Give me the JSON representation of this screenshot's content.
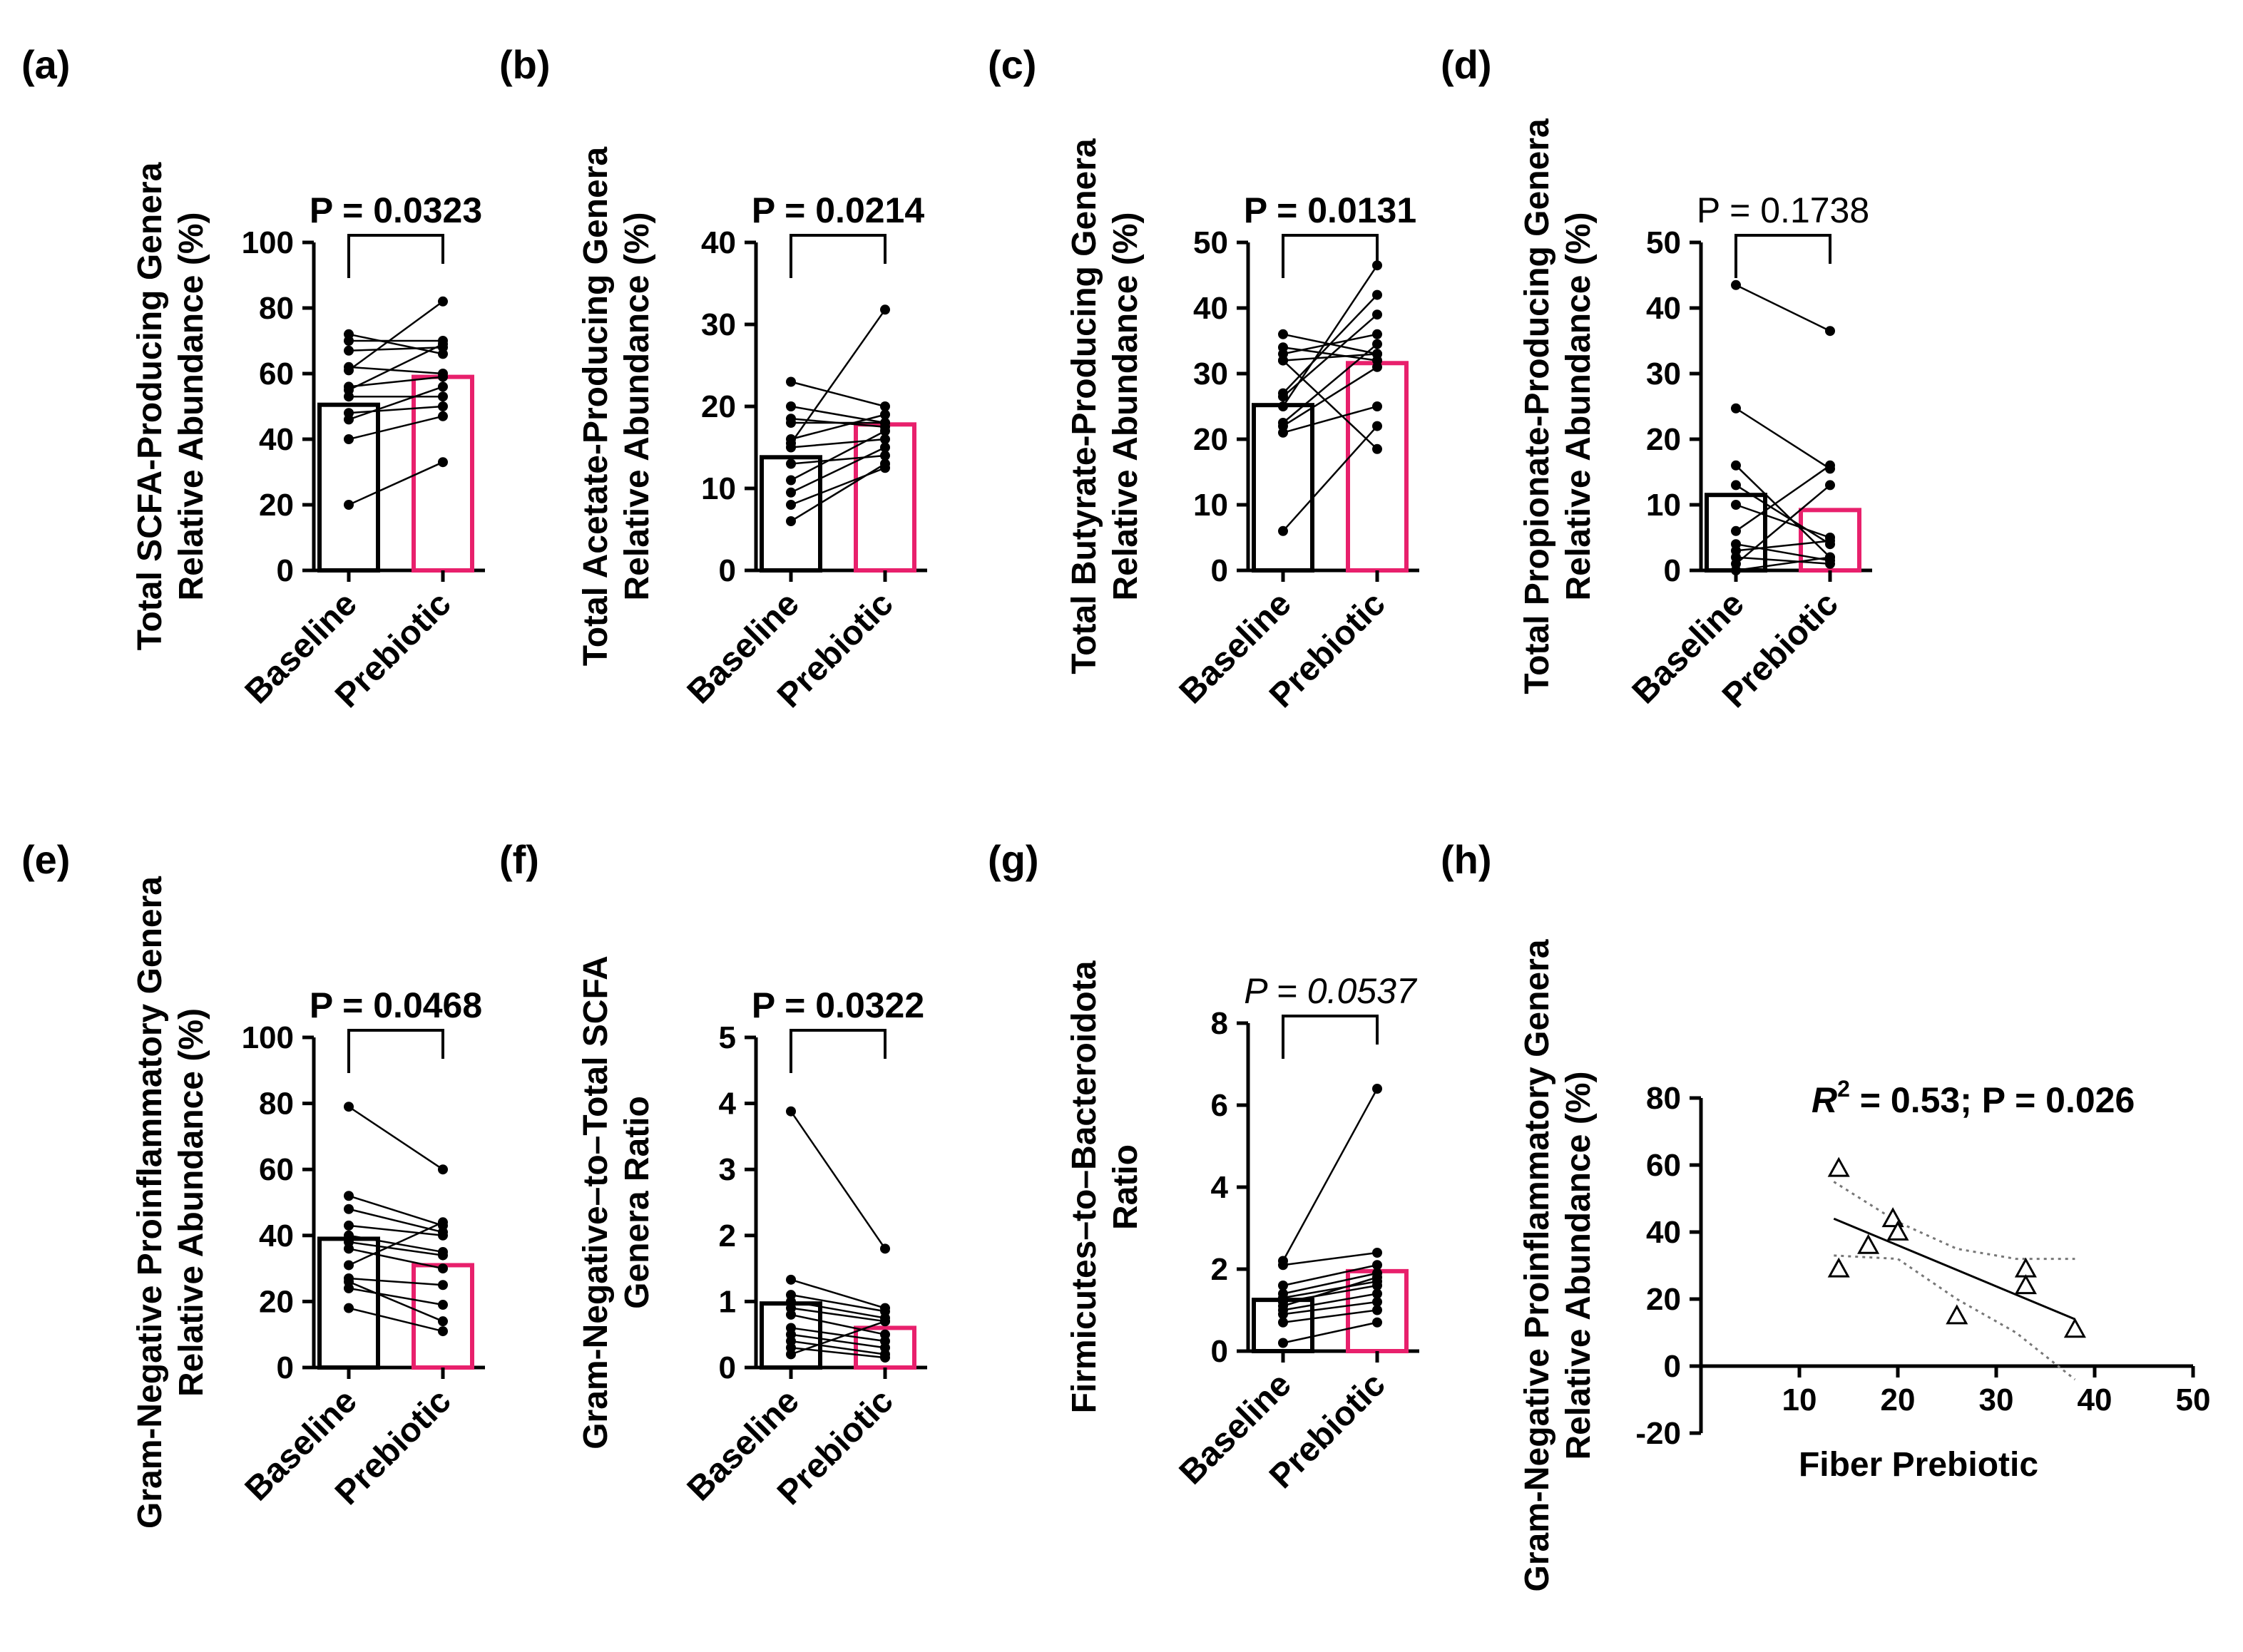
{
  "colors": {
    "baseline": "#000000",
    "prebiotic": "#e8206c",
    "line": "#000000"
  },
  "chart_data": [
    {
      "id": "a",
      "panel_label": "(a)",
      "type": "bar",
      "ylabel": [
        "Total SCFA-Producing Genera",
        "Relative Abundance (%)"
      ],
      "categories": [
        "Baseline",
        "Prebiotic"
      ],
      "values": [
        50.5,
        59
      ],
      "ylim": [
        0,
        100
      ],
      "yticks": [
        "0",
        "20",
        "40",
        "60",
        "80",
        "100"
      ],
      "pvalue": "P = 0.0323",
      "pstyle": "bold",
      "pairs": [
        [
          72,
          66
        ],
        [
          70,
          70
        ],
        [
          67,
          68
        ],
        [
          62,
          60
        ],
        [
          56,
          59
        ],
        [
          53,
          53
        ],
        [
          48,
          50
        ],
        [
          46,
          56
        ],
        [
          40,
          47
        ],
        [
          20,
          33
        ],
        [
          61,
          82
        ],
        [
          55,
          69
        ]
      ]
    },
    {
      "id": "b",
      "panel_label": "(b)",
      "type": "bar",
      "ylabel": [
        "Total Acetate-Producing Genera",
        "Relative Abundance (%)"
      ],
      "categories": [
        "Baseline",
        "Prebiotic"
      ],
      "values": [
        13.8,
        17.8
      ],
      "ylim": [
        0,
        40
      ],
      "yticks": [
        "0",
        "10",
        "20",
        "30",
        "40"
      ],
      "pvalue": "P = 0.0214",
      "pstyle": "bold",
      "pairs": [
        [
          23,
          20
        ],
        [
          20,
          18
        ],
        [
          18.5,
          17.5
        ],
        [
          18,
          18
        ],
        [
          16,
          19
        ],
        [
          15,
          16
        ],
        [
          13,
          14
        ],
        [
          11,
          17
        ],
        [
          9.5,
          15
        ],
        [
          8,
          12.5
        ],
        [
          6,
          13
        ],
        [
          15.5,
          31.8
        ]
      ]
    },
    {
      "id": "c",
      "panel_label": "(c)",
      "type": "bar",
      "ylabel": [
        "Total Butyrate-Producing Genera",
        "Relative Abundance (%)"
      ],
      "categories": [
        "Baseline",
        "Prebiotic"
      ],
      "values": [
        25.2,
        31.6
      ],
      "ylim": [
        0,
        50
      ],
      "yticks": [
        "0",
        "10",
        "20",
        "30",
        "40",
        "50"
      ],
      "pvalue": "P = 0.0131",
      "pstyle": "bold",
      "pairs": [
        [
          36,
          33
        ],
        [
          34,
          32
        ],
        [
          33,
          36
        ],
        [
          32,
          33
        ],
        [
          27,
          42
        ],
        [
          26.5,
          39
        ],
        [
          25,
          46.5
        ],
        [
          22.5,
          34.5
        ],
        [
          22,
          31
        ],
        [
          21,
          25
        ],
        [
          6,
          22
        ],
        [
          32,
          18.5
        ]
      ]
    },
    {
      "id": "d",
      "panel_label": "(d)",
      "type": "bar",
      "ylabel": [
        "Total Propionate-Producing Genera",
        "Relative Abundance (%)"
      ],
      "categories": [
        "Baseline",
        "Prebiotic"
      ],
      "values": [
        11.5,
        9.2
      ],
      "ylim": [
        0,
        50
      ],
      "yticks": [
        "0",
        "10",
        "20",
        "30",
        "40",
        "50"
      ],
      "pvalue": "P = 0.1738",
      "pstyle": "normal",
      "pairs": [
        [
          43.5,
          36.5
        ],
        [
          24.7,
          15.5
        ],
        [
          16,
          2
        ],
        [
          13,
          4
        ],
        [
          10,
          5
        ],
        [
          6,
          16
        ],
        [
          4,
          1.5
        ],
        [
          3,
          4.5
        ],
        [
          2,
          1
        ],
        [
          1,
          13
        ],
        [
          0,
          2
        ]
      ]
    },
    {
      "id": "e",
      "panel_label": "(e)",
      "type": "bar",
      "ylabel": [
        "Gram-Negative Proinflammatory Genera",
        "Relative Abundance (%)"
      ],
      "categories": [
        "Baseline",
        "Prebiotic"
      ],
      "values": [
        39,
        31
      ],
      "ylim": [
        0,
        100
      ],
      "yticks": [
        "0",
        "20",
        "40",
        "60",
        "80",
        "100"
      ],
      "pvalue": "P = 0.0468",
      "pstyle": "bold",
      "pairs": [
        [
          79,
          60
        ],
        [
          52,
          43
        ],
        [
          48,
          41
        ],
        [
          43,
          40
        ],
        [
          40,
          35
        ],
        [
          38,
          34
        ],
        [
          36,
          30
        ],
        [
          31,
          44
        ],
        [
          27,
          25
        ],
        [
          24,
          19
        ],
        [
          18,
          11
        ],
        [
          26,
          14
        ]
      ]
    },
    {
      "id": "f",
      "panel_label": "(f)",
      "type": "bar",
      "ylabel": [
        "Gram-Negative–to–Total SCFA",
        "Genera Ratio"
      ],
      "categories": [
        "Baseline",
        "Prebiotic"
      ],
      "values": [
        0.97,
        0.6
      ],
      "ylim": [
        0,
        5
      ],
      "yticks": [
        "0",
        "1",
        "2",
        "3",
        "4",
        "5"
      ],
      "pvalue": "P = 0.0322",
      "pstyle": "bold",
      "pairs": [
        [
          3.88,
          1.8
        ],
        [
          1.33,
          0.9
        ],
        [
          1.1,
          0.85
        ],
        [
          1.0,
          0.75
        ],
        [
          0.9,
          0.7
        ],
        [
          0.8,
          0.5
        ],
        [
          0.6,
          0.4
        ],
        [
          0.5,
          0.3
        ],
        [
          0.4,
          0.2
        ],
        [
          0.3,
          0.15
        ],
        [
          0.2,
          0.7
        ]
      ]
    },
    {
      "id": "g",
      "panel_label": "(g)",
      "type": "bar",
      "ylabel": [
        "Firmicutes–to–Bacteroidota",
        "Ratio"
      ],
      "categories": [
        "Baseline",
        "Prebiotic"
      ],
      "values": [
        1.25,
        1.95
      ],
      "ylim": [
        0,
        8
      ],
      "yticks": [
        "0",
        "2",
        "4",
        "6",
        "8"
      ],
      "pvalue": "P = 0.0537",
      "pstyle": "italic",
      "pairs": [
        [
          2.2,
          6.4
        ],
        [
          2.1,
          2.4
        ],
        [
          1.6,
          2.1
        ],
        [
          1.4,
          1.9
        ],
        [
          1.3,
          1.7
        ],
        [
          1.2,
          1.6
        ],
        [
          1.1,
          1.8
        ],
        [
          1.0,
          1.4
        ],
        [
          0.9,
          1.2
        ],
        [
          0.7,
          1.0
        ],
        [
          0.2,
          0.7
        ]
      ]
    },
    {
      "id": "h",
      "panel_label": "(h)",
      "type": "scatter",
      "ylabel": [
        "Gram-Negative Proinflammatory Genera",
        "Relative Abundance (%)"
      ],
      "xlabel": "Fiber Prebiotic",
      "xlim": [
        0,
        50
      ],
      "ylim": [
        -20,
        80
      ],
      "xticks": [
        "10",
        "20",
        "30",
        "40",
        "50"
      ],
      "yticks": [
        "-20",
        "0",
        "20",
        "40",
        "60",
        "80"
      ],
      "annotation": {
        "r_symbol": "R",
        "r_exp": "2",
        "rest": " = 0.53; P = 0.026"
      },
      "points": [
        [
          14,
          59
        ],
        [
          14,
          29
        ],
        [
          17,
          36
        ],
        [
          19.5,
          44
        ],
        [
          20,
          40
        ],
        [
          26,
          15
        ],
        [
          33,
          29
        ],
        [
          33,
          24
        ],
        [
          38,
          11
        ]
      ],
      "fit": {
        "x": [
          13.5,
          38
        ],
        "y": [
          44,
          14
        ]
      },
      "ci_upper": [
        [
          13.5,
          55
        ],
        [
          20,
          43
        ],
        [
          26,
          35
        ],
        [
          32,
          32
        ],
        [
          38,
          32
        ]
      ],
      "ci_lower": [
        [
          13.5,
          33
        ],
        [
          20,
          32
        ],
        [
          26,
          20
        ],
        [
          32,
          10
        ],
        [
          38,
          -4
        ]
      ]
    }
  ]
}
